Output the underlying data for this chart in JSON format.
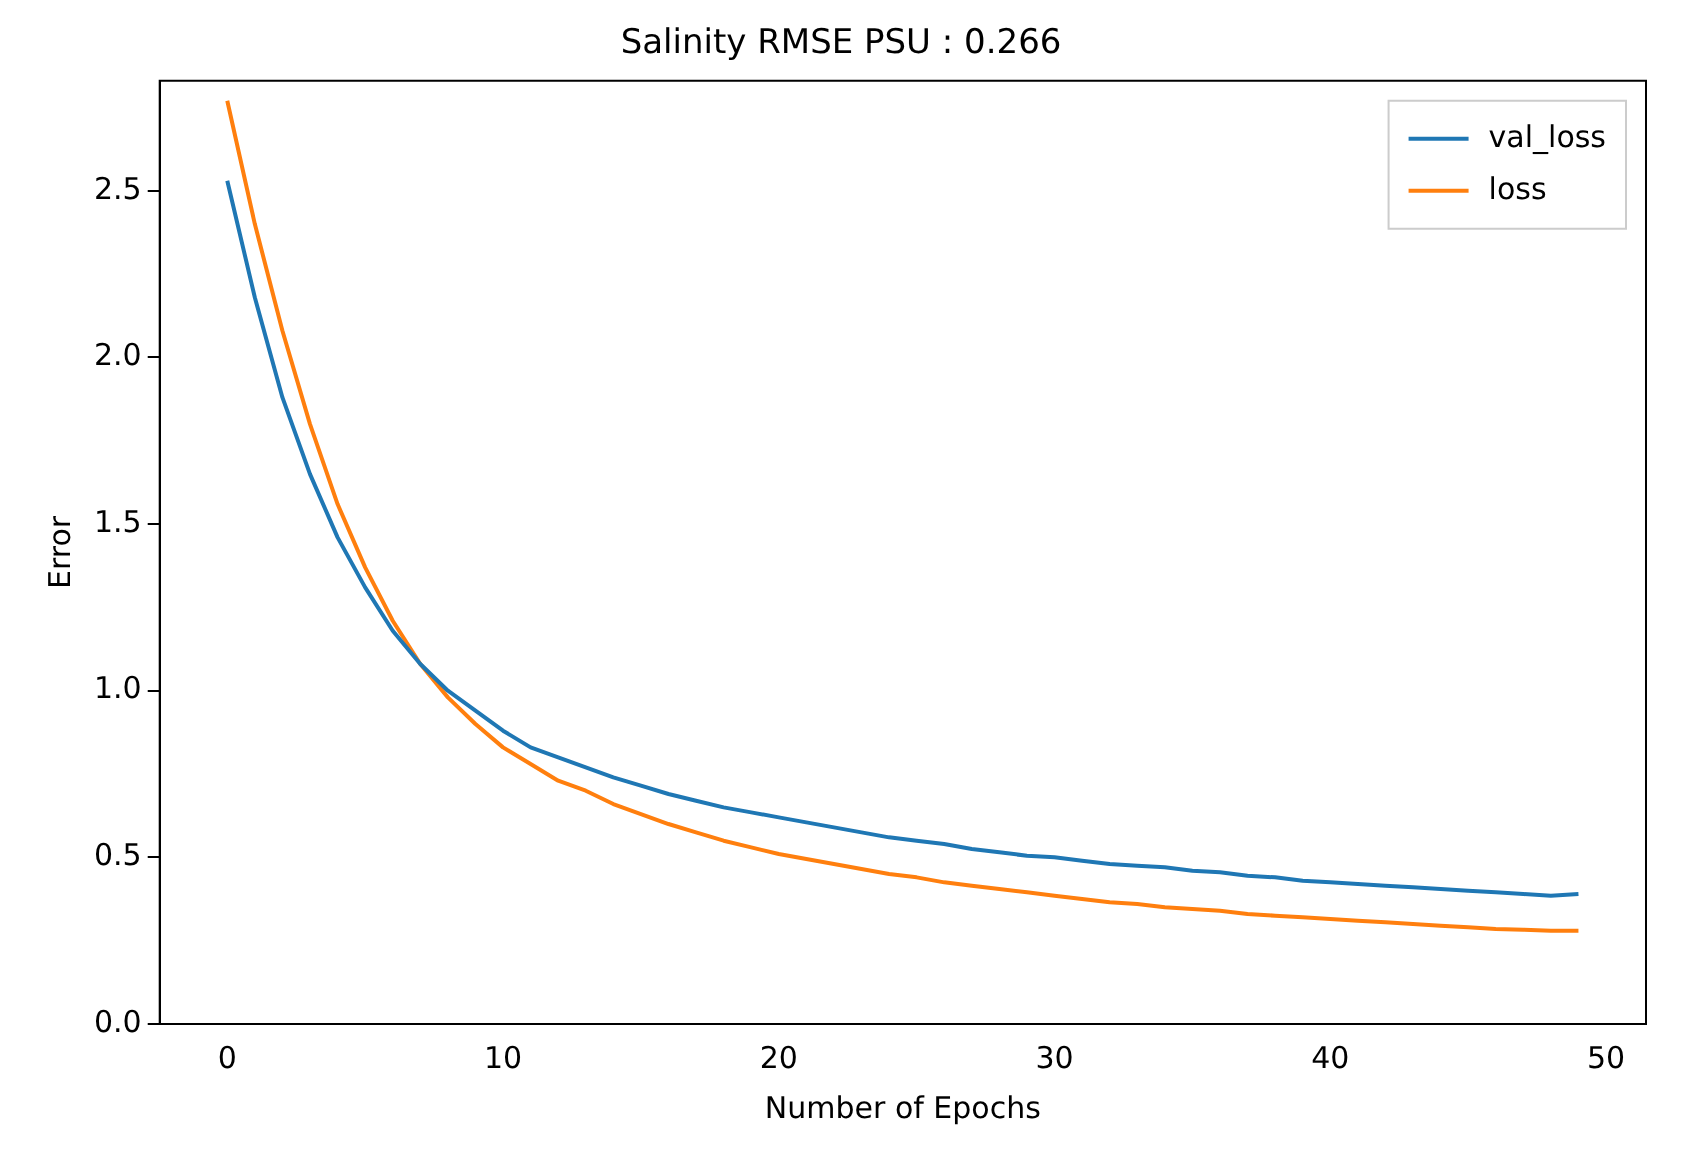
{
  "chart_data": {
    "type": "line",
    "title": "Salinity RMSE PSU : 0.266",
    "xlabel": "Number of Epochs",
    "ylabel": "Error",
    "x": [
      0,
      1,
      2,
      3,
      4,
      5,
      6,
      7,
      8,
      9,
      10,
      11,
      12,
      13,
      14,
      15,
      16,
      17,
      18,
      19,
      20,
      21,
      22,
      23,
      24,
      25,
      26,
      27,
      28,
      29,
      30,
      31,
      32,
      33,
      34,
      35,
      36,
      37,
      38,
      39,
      40,
      41,
      42,
      43,
      44,
      45,
      46,
      47,
      48,
      49
    ],
    "series": [
      {
        "name": "val_loss",
        "color": "#1f77b4",
        "values": [
          2.53,
          2.18,
          1.88,
          1.65,
          1.46,
          1.31,
          1.18,
          1.08,
          1.0,
          0.94,
          0.88,
          0.83,
          0.8,
          0.77,
          0.74,
          0.715,
          0.69,
          0.67,
          0.65,
          0.635,
          0.62,
          0.605,
          0.59,
          0.575,
          0.56,
          0.55,
          0.54,
          0.525,
          0.515,
          0.505,
          0.5,
          0.49,
          0.48,
          0.475,
          0.47,
          0.46,
          0.455,
          0.445,
          0.44,
          0.43,
          0.425,
          0.42,
          0.415,
          0.41,
          0.405,
          0.4,
          0.395,
          0.39,
          0.385,
          0.39
        ]
      },
      {
        "name": "loss",
        "color": "#ff7f0e",
        "values": [
          2.77,
          2.4,
          2.08,
          1.8,
          1.56,
          1.37,
          1.21,
          1.08,
          0.98,
          0.9,
          0.83,
          0.78,
          0.73,
          0.7,
          0.66,
          0.63,
          0.6,
          0.575,
          0.55,
          0.53,
          0.51,
          0.495,
          0.48,
          0.465,
          0.45,
          0.44,
          0.425,
          0.415,
          0.405,
          0.395,
          0.385,
          0.375,
          0.365,
          0.36,
          0.35,
          0.345,
          0.34,
          0.33,
          0.325,
          0.32,
          0.315,
          0.31,
          0.305,
          0.3,
          0.295,
          0.29,
          0.285,
          0.283,
          0.28,
          0.28
        ]
      }
    ],
    "xlim": [
      -2.45,
      51.45
    ],
    "xticks": [
      0,
      10,
      20,
      30,
      40,
      50
    ],
    "ylim": [
      0,
      2.83
    ],
    "yticks": [
      {
        "value": 0,
        "label": "0.0"
      },
      {
        "value": 0.5,
        "label": "0.5"
      },
      {
        "value": 1,
        "label": "1.0"
      },
      {
        "value": 1.5,
        "label": "1.5"
      },
      {
        "value": 2,
        "label": "2.0"
      },
      {
        "value": 2.5,
        "label": "2.5"
      }
    ],
    "legend": "top right",
    "grid": false,
    "marker": "none",
    "line_style": "solid"
  }
}
